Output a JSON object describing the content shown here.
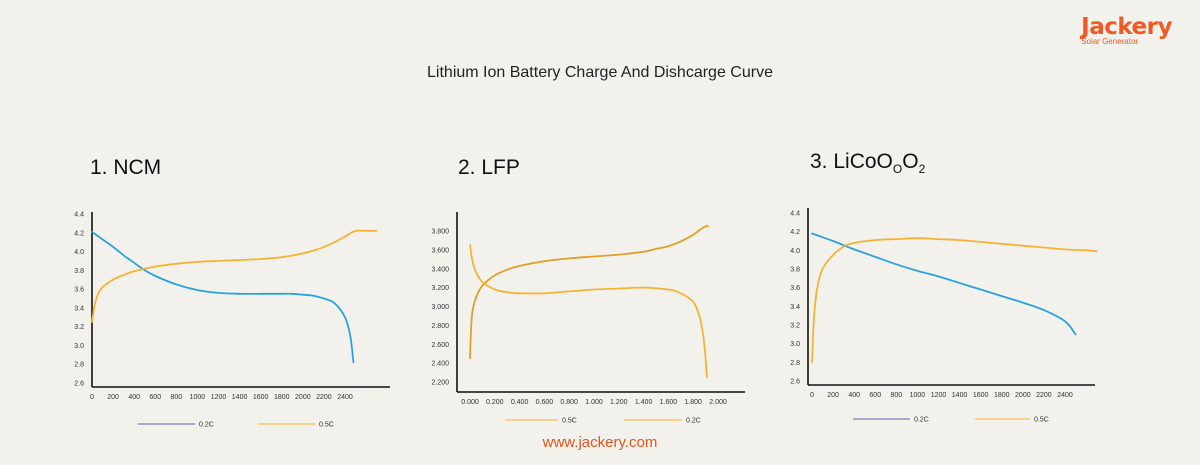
{
  "brand": {
    "name": "Jackery",
    "tagline": "Solar Generator"
  },
  "title": "Lithium Ion Battery Charge And Dishcarge Curve",
  "footer_url": "www.jackery.com",
  "colors": {
    "blue": "#29a3e0",
    "orange": "#f5b335",
    "orange_dark": "#e0a02a",
    "purple": "#6a5aa8",
    "brand": "#f15a24"
  },
  "chart_data": [
    {
      "type": "line",
      "title": "1. NCM",
      "x_ticks": [
        "0",
        "200",
        "400",
        "600",
        "800",
        "1000",
        "1200",
        "1400",
        "1600",
        "1800",
        "2000",
        "2200",
        "2400"
      ],
      "y_ticks": [
        "2.6",
        "2.8",
        "3.0",
        "3.2",
        "3.4",
        "3.6",
        "3.8",
        "4.0",
        "4.2",
        "4.4"
      ],
      "xlim": [
        0,
        2700
      ],
      "ylim": [
        2.6,
        4.4
      ],
      "series": [
        {
          "name": "0.2C",
          "color": "#29a3e0",
          "x": [
            0,
            100,
            200,
            300,
            400,
            500,
            600,
            800,
            1000,
            1200,
            1400,
            1600,
            1800,
            1900,
            2000,
            2100,
            2200,
            2300,
            2400,
            2450,
            2480
          ],
          "y": [
            4.21,
            4.13,
            4.05,
            3.96,
            3.88,
            3.8,
            3.74,
            3.65,
            3.59,
            3.56,
            3.55,
            3.55,
            3.55,
            3.55,
            3.54,
            3.53,
            3.5,
            3.45,
            3.3,
            3.1,
            2.82
          ]
        },
        {
          "name": "0.5C",
          "color": "#f5b335",
          "x": [
            0,
            20,
            50,
            100,
            200,
            300,
            400,
            600,
            800,
            1000,
            1200,
            1400,
            1600,
            1800,
            2000,
            2100,
            2200,
            2300,
            2400,
            2500,
            2600,
            2700
          ],
          "y": [
            3.25,
            3.4,
            3.53,
            3.62,
            3.7,
            3.75,
            3.79,
            3.84,
            3.87,
            3.89,
            3.9,
            3.91,
            3.92,
            3.94,
            3.98,
            4.01,
            4.05,
            4.1,
            4.16,
            4.22,
            4.22,
            4.22
          ]
        }
      ],
      "legend": [
        "0.2C",
        "0.5C"
      ]
    },
    {
      "type": "line",
      "title": "2. LFP",
      "x_ticks": [
        "0.000",
        "0.200",
        "0.400",
        "0.600",
        "0.800",
        "1.000",
        "1.200",
        "1.400",
        "1.600",
        "1.800",
        "2.000"
      ],
      "y_ticks": [
        "2.200",
        "2.400",
        "2.600",
        "2.800",
        "3.000",
        "3.200",
        "3.400",
        "3.600",
        "3.800"
      ],
      "xlim": [
        0,
        2.2
      ],
      "ylim": [
        2.2,
        4.0
      ],
      "series": [
        {
          "name": "0.5C",
          "color": "#e0a02a",
          "x": [
            0,
            0.01,
            0.02,
            0.05,
            0.1,
            0.2,
            0.3,
            0.4,
            0.6,
            0.8,
            1.0,
            1.2,
            1.4,
            1.5,
            1.6,
            1.7,
            1.8,
            1.85,
            1.9,
            1.92
          ],
          "y": [
            2.45,
            2.8,
            2.95,
            3.1,
            3.22,
            3.33,
            3.39,
            3.43,
            3.48,
            3.51,
            3.53,
            3.55,
            3.58,
            3.61,
            3.64,
            3.69,
            3.76,
            3.81,
            3.85,
            3.85
          ]
        },
        {
          "name": "0.2C",
          "color": "#f5b335",
          "x": [
            0,
            0.02,
            0.05,
            0.1,
            0.2,
            0.3,
            0.4,
            0.6,
            0.8,
            1.0,
            1.2,
            1.4,
            1.6,
            1.7,
            1.8,
            1.85,
            1.88,
            1.9,
            1.91
          ],
          "y": [
            3.65,
            3.48,
            3.36,
            3.26,
            3.18,
            3.15,
            3.14,
            3.14,
            3.16,
            3.18,
            3.19,
            3.2,
            3.18,
            3.14,
            3.05,
            2.9,
            2.7,
            2.45,
            2.25
          ]
        }
      ],
      "legend": [
        "0.5C",
        "0.2C"
      ]
    },
    {
      "type": "line",
      "title": "3. LiCoO",
      "title_sub": [
        "O",
        "2"
      ],
      "x_ticks": [
        "0",
        "200",
        "400",
        "600",
        "800",
        "1000",
        "1200",
        "1400",
        "1600",
        "1800",
        "2000",
        "2200",
        "2400"
      ],
      "y_ticks": [
        "2.6",
        "2.8",
        "3.0",
        "3.2",
        "3.4",
        "3.6",
        "3.8",
        "4.0",
        "4.2",
        "4.4"
      ],
      "xlim": [
        0,
        2700
      ],
      "ylim": [
        2.6,
        4.4
      ],
      "series": [
        {
          "name": "0.2C",
          "color": "#29a3e0",
          "x": [
            0,
            200,
            400,
            600,
            800,
            1000,
            1200,
            1400,
            1600,
            1800,
            2000,
            2200,
            2400,
            2500
          ],
          "y": [
            4.18,
            4.1,
            4.01,
            3.93,
            3.85,
            3.78,
            3.72,
            3.65,
            3.58,
            3.51,
            3.44,
            3.36,
            3.24,
            3.1
          ]
        },
        {
          "name": "0.5C",
          "color": "#f5b335",
          "x": [
            0,
            20,
            50,
            100,
            200,
            300,
            400,
            600,
            800,
            1000,
            1200,
            1400,
            1600,
            1800,
            2000,
            2200,
            2400,
            2600,
            2700
          ],
          "y": [
            2.8,
            3.3,
            3.6,
            3.8,
            3.95,
            4.04,
            4.08,
            4.11,
            4.12,
            4.13,
            4.12,
            4.11,
            4.09,
            4.07,
            4.05,
            4.03,
            4.01,
            4.0,
            3.99
          ]
        }
      ],
      "legend": [
        "0.2C",
        "0.5C"
      ]
    }
  ]
}
